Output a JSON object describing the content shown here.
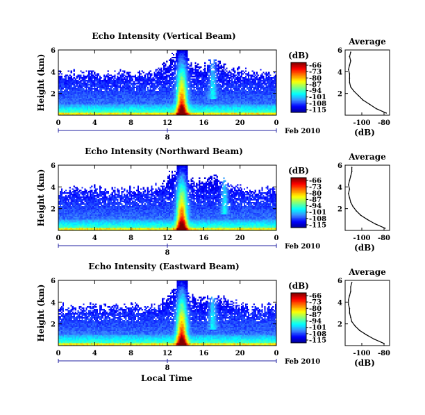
{
  "figure": {
    "xlabel_bottom": "Local Time",
    "date_label": "Feb 2010",
    "date_day": "8",
    "colorbar_unit": "(dB)",
    "avg_xlabel": "(dB)",
    "avg_title": "Average"
  },
  "chart_data": [
    {
      "type": "heatmap",
      "title": "Echo Intensity (Vertical Beam)",
      "xlabel": "",
      "ylabel": "Height (km)",
      "x_ticks": [
        "0",
        "4",
        "8",
        "12",
        "16",
        "20",
        "0"
      ],
      "y_ticks": [
        "2",
        "4",
        "6"
      ],
      "xlim": [
        0,
        24
      ],
      "ylim": [
        0,
        6
      ],
      "colorbar": {
        "unit": "(dB)",
        "ticks": [
          "-66",
          "-73",
          "-80",
          "-87",
          "-94",
          "-101",
          "-108",
          "-115"
        ],
        "range": [
          -115,
          -66
        ]
      },
      "colormap": [
        "#00008f",
        "#0000ff",
        "#3b8bff",
        "#00ffff",
        "#7fff7f",
        "#ffff00",
        "#ff8000",
        "#ff0000",
        "#800000"
      ],
      "average_profile": {
        "title": "Average",
        "xlabel": "(dB)",
        "x_ticks": [
          "-100",
          "-80"
        ],
        "y_ticks": [
          "2",
          "4",
          "6"
        ],
        "xlim": [
          -115,
          -75
        ],
        "ylim": [
          0,
          6
        ],
        "height_km": [
          0.2,
          0.6,
          1.0,
          1.4,
          1.8,
          2.2,
          2.6,
          3.0,
          3.4,
          3.8,
          4.2,
          4.6,
          5.0,
          5.4,
          5.8
        ],
        "echo_db": [
          -78,
          -87,
          -93,
          -99,
          -103,
          -107,
          -110,
          -111,
          -111,
          -111,
          -112,
          -111,
          -110,
          -111,
          -110
        ]
      }
    },
    {
      "type": "heatmap",
      "title": "Echo Intensity (Northward Beam)",
      "xlabel": "",
      "ylabel": "Height (km)",
      "x_ticks": [
        "0",
        "4",
        "8",
        "12",
        "16",
        "20",
        "0"
      ],
      "y_ticks": [
        "2",
        "4",
        "6"
      ],
      "xlim": [
        0,
        24
      ],
      "ylim": [
        0,
        6
      ],
      "colorbar": {
        "unit": "(dB)",
        "ticks": [
          "-66",
          "-73",
          "-80",
          "-87",
          "-94",
          "-101",
          "-108",
          "-115"
        ],
        "range": [
          -115,
          -66
        ]
      },
      "colormap": [
        "#00008f",
        "#0000ff",
        "#3b8bff",
        "#00ffff",
        "#7fff7f",
        "#ffff00",
        "#ff8000",
        "#ff0000",
        "#800000"
      ],
      "average_profile": {
        "title": "Average",
        "xlabel": "(dB)",
        "x_ticks": [
          "-100",
          "-80"
        ],
        "y_ticks": [
          "2",
          "4",
          "6"
        ],
        "xlim": [
          -115,
          -75
        ],
        "ylim": [
          0,
          6
        ],
        "height_km": [
          0.2,
          0.6,
          1.0,
          1.4,
          1.8,
          2.2,
          2.6,
          3.0,
          3.4,
          3.8,
          4.2,
          4.6,
          5.0,
          5.4,
          5.8
        ],
        "echo_db": [
          -79,
          -88,
          -95,
          -101,
          -105,
          -108,
          -110,
          -111,
          -112,
          -111,
          -112,
          -111,
          -110,
          -109,
          -109
        ]
      }
    },
    {
      "type": "heatmap",
      "title": "Echo Intensity (Eastward Beam)",
      "xlabel": "Local Time",
      "ylabel": "Height (km)",
      "x_ticks": [
        "0",
        "4",
        "8",
        "12",
        "16",
        "20",
        "0"
      ],
      "y_ticks": [
        "2",
        "4",
        "6"
      ],
      "xlim": [
        0,
        24
      ],
      "ylim": [
        0,
        6
      ],
      "colorbar": {
        "unit": "(dB)",
        "ticks": [
          "-66",
          "-73",
          "-80",
          "-87",
          "-94",
          "-101",
          "-108",
          "-115"
        ],
        "range": [
          -115,
          -66
        ]
      },
      "colormap": [
        "#00008f",
        "#0000ff",
        "#3b8bff",
        "#00ffff",
        "#7fff7f",
        "#ffff00",
        "#ff8000",
        "#ff0000",
        "#800000"
      ],
      "average_profile": {
        "title": "Average",
        "xlabel": "(dB)",
        "x_ticks": [
          "-100",
          "-80"
        ],
        "y_ticks": [
          "2",
          "4",
          "6"
        ],
        "xlim": [
          -115,
          -75
        ],
        "ylim": [
          0,
          6
        ],
        "height_km": [
          0.2,
          0.6,
          1.0,
          1.4,
          1.8,
          2.2,
          2.6,
          3.0,
          3.4,
          3.8,
          4.2,
          4.6,
          5.0,
          5.4,
          5.8
        ],
        "echo_db": [
          -80,
          -89,
          -96,
          -102,
          -106,
          -109,
          -110,
          -111,
          -111,
          -112,
          -112,
          -111,
          -110,
          -110,
          -109
        ]
      }
    }
  ]
}
